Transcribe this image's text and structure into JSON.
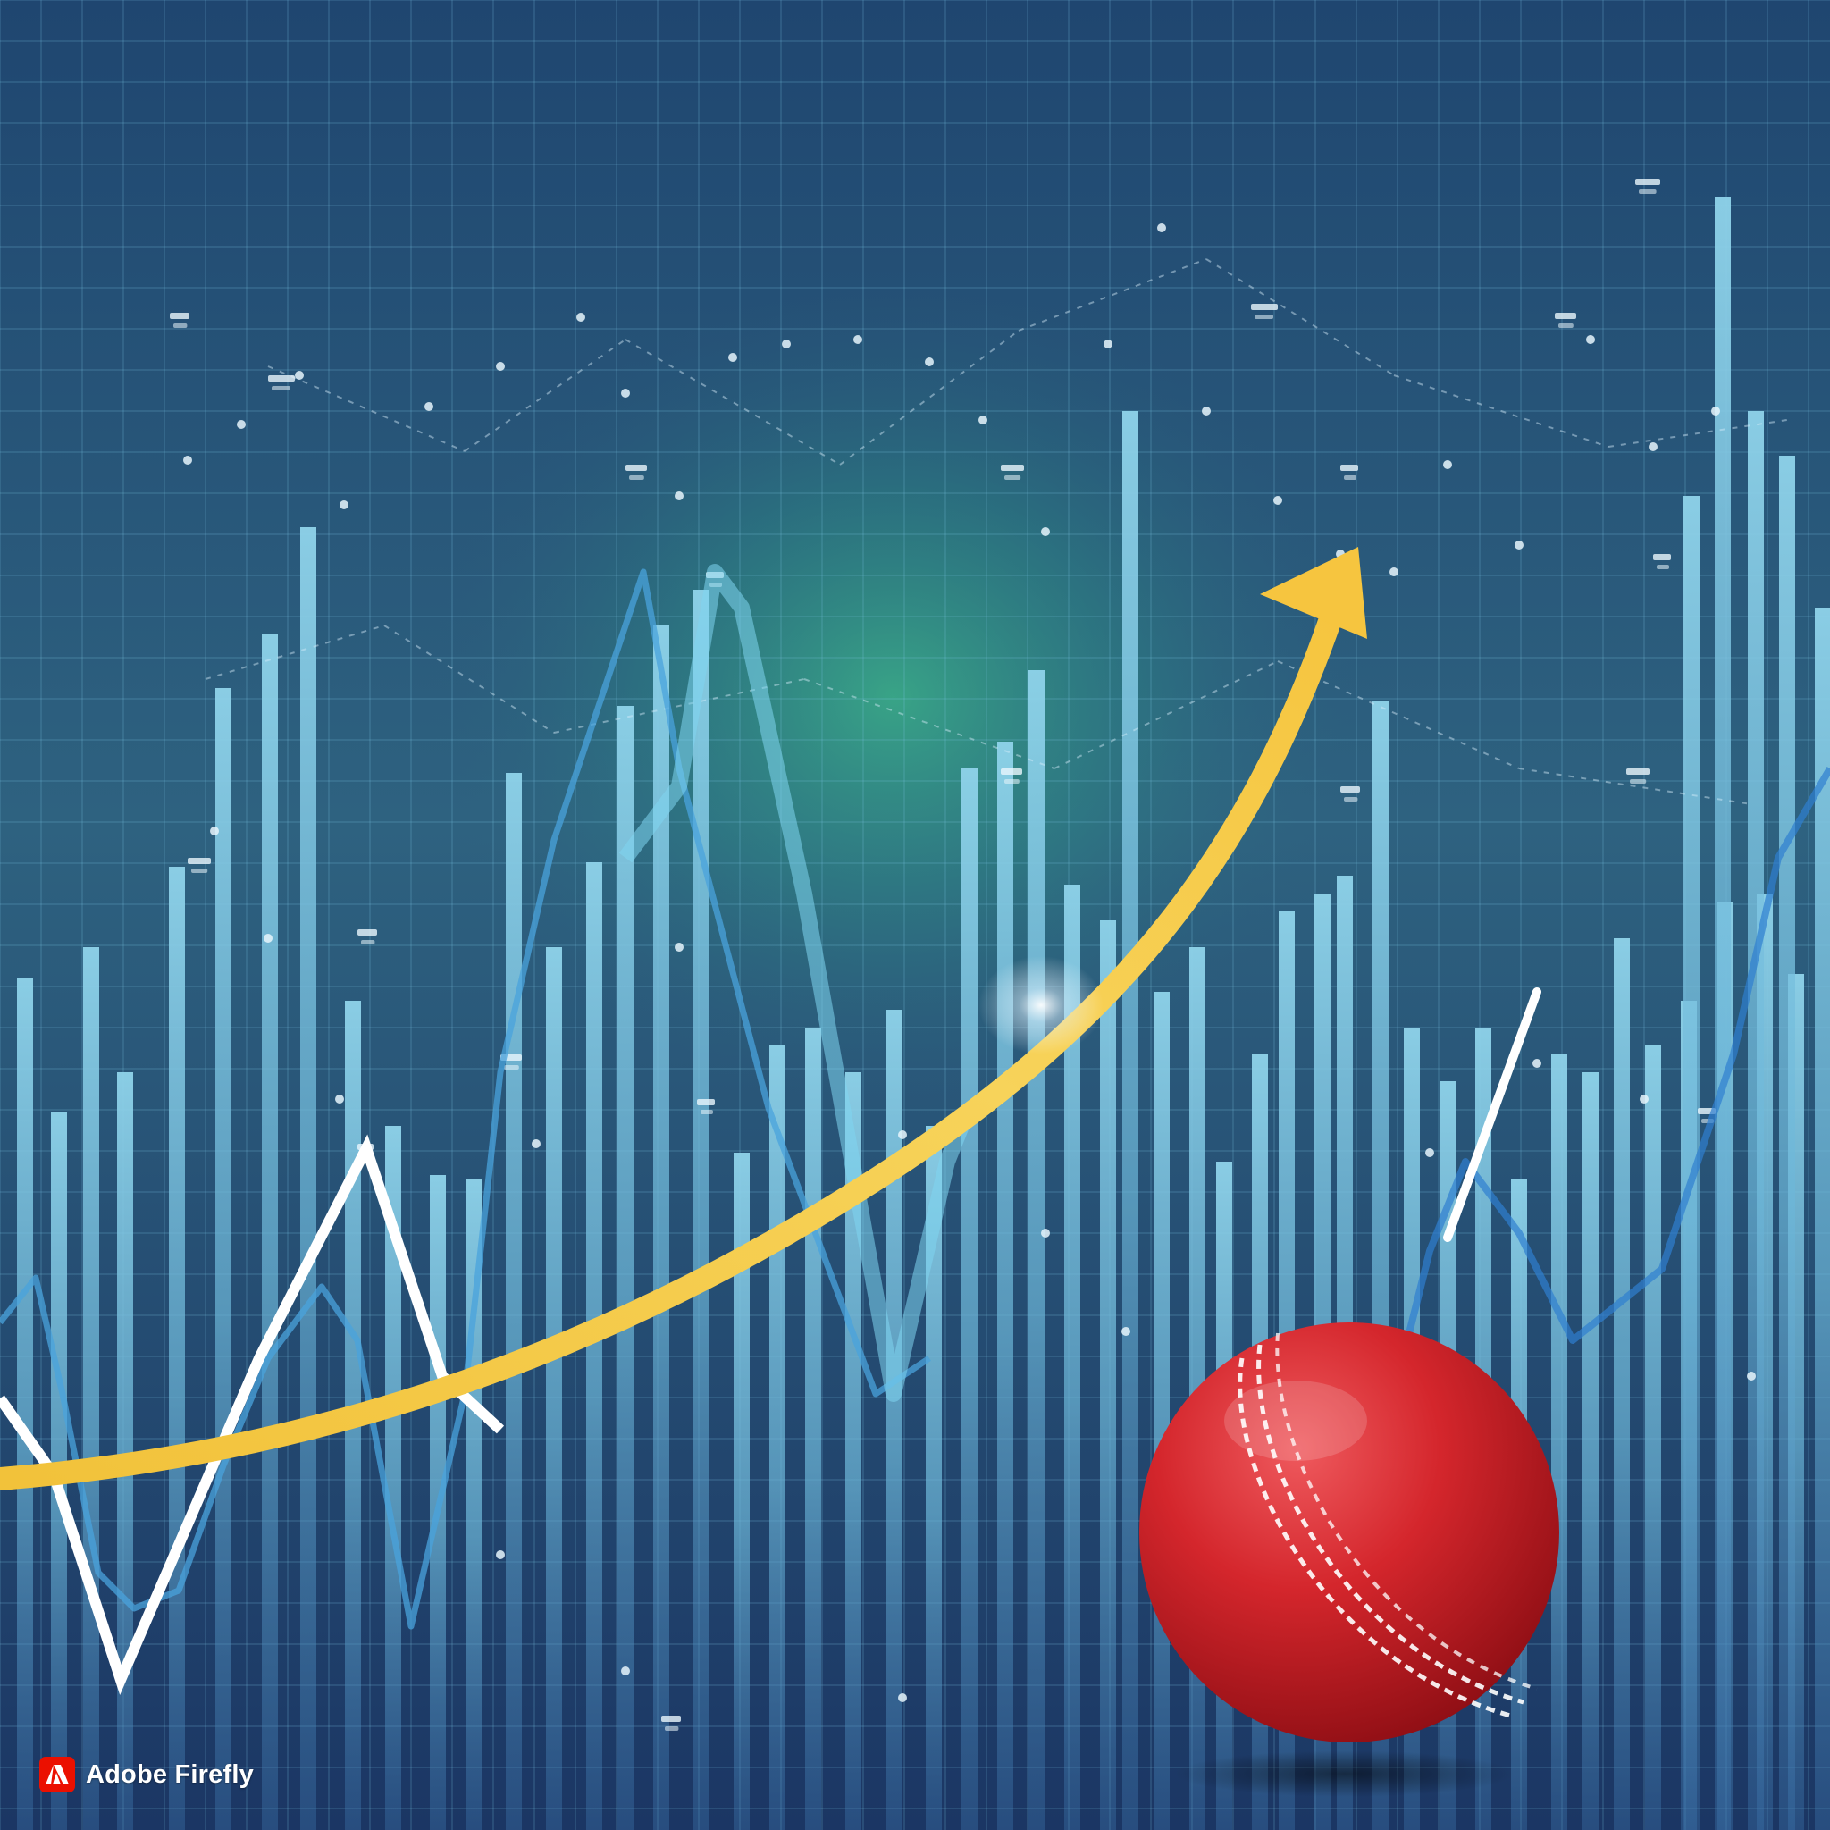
{
  "scene": {
    "description_free": true,
    "background_colors": {
      "top": "#1f4670",
      "middle": "#2e6280",
      "bottom": "#1b3664",
      "glow": "#3dbb8a"
    },
    "bar_color": "#8fd3ea",
    "grid_color": "#7fc4e6"
  },
  "chart": {
    "type": "decorative-bar-and-line",
    "trend_arrow_color": "#f7c843",
    "zigzag_line_color": "#ffffff",
    "secondary_line_color": "#4aa3dc"
  },
  "ball": {
    "icon": "cricket-ball-icon",
    "color": "#d4262c",
    "seam_color": "#ffffff"
  },
  "watermark": {
    "logo_icon": "adobe-logo-icon",
    "brand": "Adobe Firefly",
    "logo_color": "#eb1000"
  }
}
